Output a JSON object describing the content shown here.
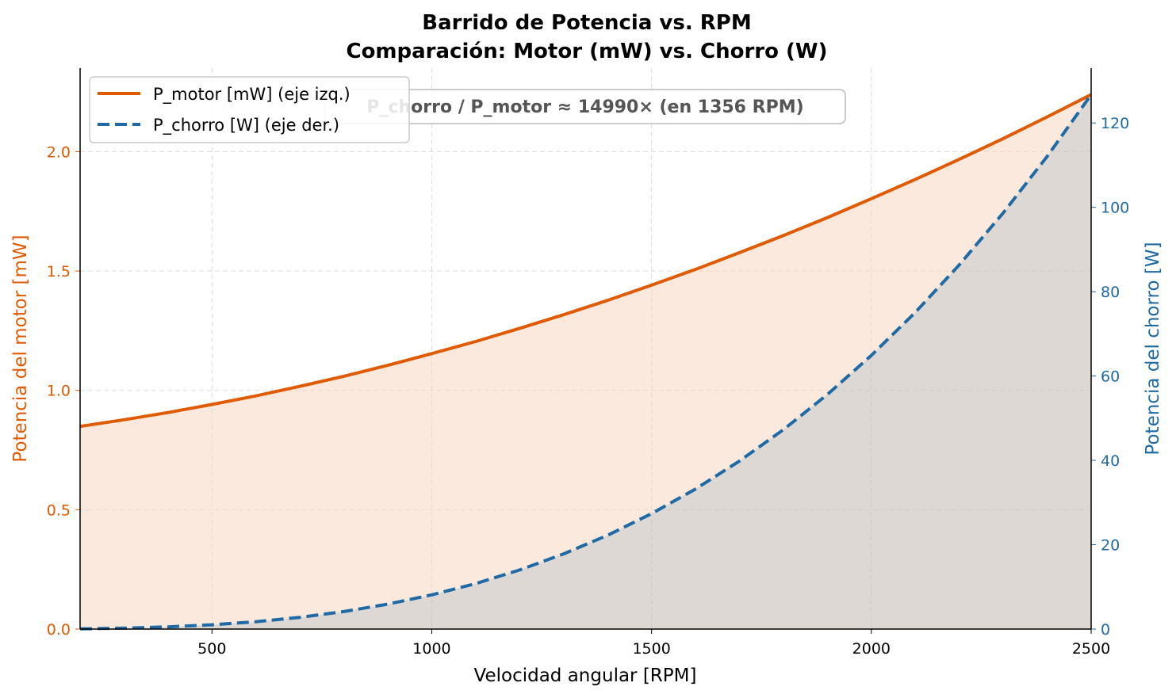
{
  "chart_data": {
    "type": "line",
    "title": "Barrido de Potencia vs. RPM",
    "subtitle": "Comparación: Motor (mW) vs. Chorro (W)",
    "xlabel": "Velocidad angular  [RPM]",
    "ylabel_left": "Potencia del motor  [mW]",
    "ylabel_right": "Potencia del chorro  [W]",
    "xlim": [
      200,
      2500
    ],
    "ylim_left": [
      0,
      2.35
    ],
    "ylim_right": [
      0,
      133
    ],
    "x_ticks": [
      500,
      1000,
      1500,
      2000,
      2500
    ],
    "y_left_ticks": [
      "0.0",
      "0.5",
      "1.0",
      "1.5",
      "2.0"
    ],
    "y_right_ticks": [
      "0",
      "20",
      "40",
      "60",
      "80",
      "100",
      "120"
    ],
    "grid": true,
    "legend_position": "top-left",
    "annotation": "P_chorro / P_motor ≈ 14990×  (en 1356 RPM)",
    "x": [
      200,
      300,
      400,
      500,
      600,
      700,
      800,
      900,
      1000,
      1100,
      1200,
      1300,
      1400,
      1500,
      1600,
      1700,
      1800,
      1900,
      2000,
      2100,
      2200,
      2300,
      2400,
      2500
    ],
    "series": [
      {
        "name": "P_motor  [mW]  (eje izq.)",
        "axis": "left",
        "color": "#e05a00",
        "style": "solid",
        "values": [
          0.849,
          0.877,
          0.907,
          0.941,
          0.977,
          1.017,
          1.059,
          1.105,
          1.154,
          1.205,
          1.26,
          1.317,
          1.377,
          1.441,
          1.507,
          1.577,
          1.649,
          1.724,
          1.803,
          1.884,
          1.968,
          2.055,
          2.146,
          2.239
        ]
      },
      {
        "name": "P_chorro  [W]  (eje der.)",
        "axis": "right",
        "color": "#1f6aa5",
        "style": "dashed",
        "values": [
          0.065,
          0.219,
          0.519,
          1.014,
          1.752,
          2.782,
          4.152,
          5.912,
          8.11,
          10.79,
          14.01,
          17.82,
          22.25,
          27.37,
          33.22,
          39.84,
          47.3,
          55.63,
          64.88,
          75.11,
          86.36,
          98.67,
          112.1,
          126.7
        ]
      }
    ]
  }
}
